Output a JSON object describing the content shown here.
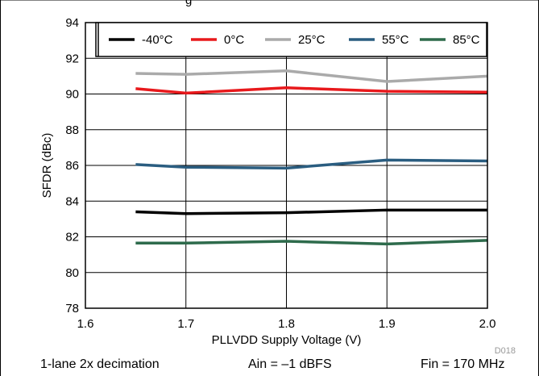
{
  "chart_data": {
    "type": "line",
    "title": "",
    "title_fragment": "g",
    "xlabel": "PLLVDD Supply Voltage (V)",
    "ylabel": "SFDR (dBc)",
    "xlim": [
      1.6,
      2.0
    ],
    "ylim": [
      78,
      94
    ],
    "x_ticks": [
      "1.6",
      "1.7",
      "1.8",
      "1.9",
      "2.0"
    ],
    "y_ticks": [
      "78",
      "80",
      "82",
      "84",
      "86",
      "88",
      "90",
      "92",
      "94"
    ],
    "grid": true,
    "legend_position": "top",
    "x": [
      1.65,
      1.7,
      1.8,
      1.9,
      2.0
    ],
    "series": [
      {
        "name": "-40°C",
        "color": "#000000",
        "values": [
          83.4,
          83.3,
          83.35,
          83.5,
          83.5
        ]
      },
      {
        "name": "0°C",
        "color": "#e8191c",
        "values": [
          90.3,
          90.05,
          90.35,
          90.15,
          90.1
        ]
      },
      {
        "name": "25°C",
        "color": "#aaaaaa",
        "values": [
          91.15,
          91.1,
          91.3,
          90.7,
          91.0
        ]
      },
      {
        "name": "55°C",
        "color": "#2a5d80",
        "values": [
          86.05,
          85.9,
          85.85,
          86.3,
          86.25
        ]
      },
      {
        "name": "85°C",
        "color": "#2e6b4c",
        "values": [
          81.65,
          81.65,
          81.75,
          81.6,
          81.8
        ]
      }
    ],
    "watermark": "D018"
  },
  "footer": {
    "left": "1-lane 2x decimation",
    "center": "Ain = –1 dBFS",
    "right": "Fin = 170 MHz"
  }
}
